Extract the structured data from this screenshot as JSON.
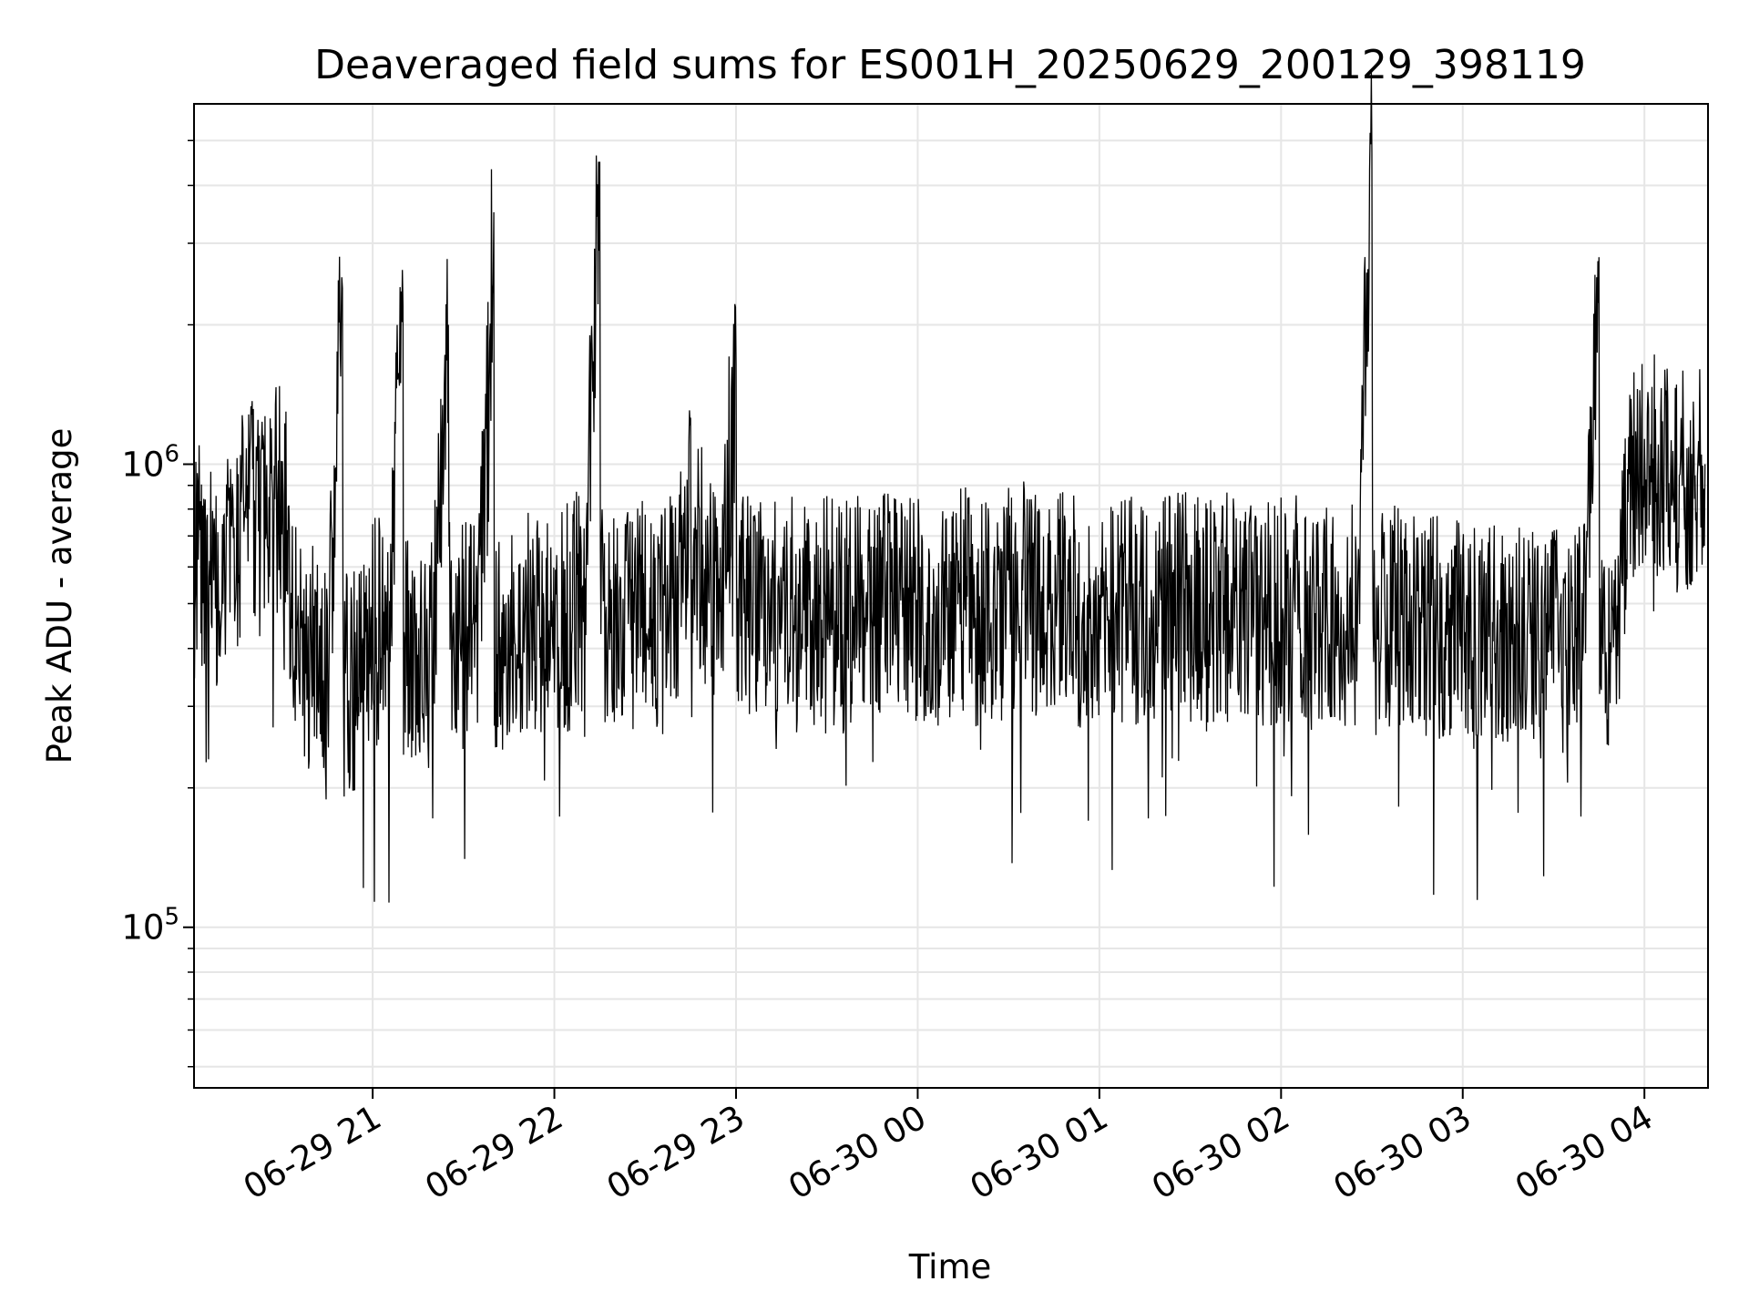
{
  "chart_data": {
    "type": "line",
    "title": "Deaveraged field sums for ES001H_20250629_200129_398119",
    "xlabel": "Time",
    "ylabel": "Peak ADU - average",
    "yscale": "log",
    "ylim": [
      45000,
      6000000
    ],
    "xlim": [
      "2025-06-29 20:01",
      "2025-06-30 04:21"
    ],
    "grid": true,
    "line_color": "#000000",
    "x_ticks": [
      {
        "t": "2025-06-29 21:00",
        "label": "06-29 21"
      },
      {
        "t": "2025-06-29 22:00",
        "label": "06-29 22"
      },
      {
        "t": "2025-06-29 23:00",
        "label": "06-29 23"
      },
      {
        "t": "2025-06-30 00:00",
        "label": "06-30 00"
      },
      {
        "t": "2025-06-30 01:00",
        "label": "06-30 01"
      },
      {
        "t": "2025-06-30 02:00",
        "label": "06-30 02"
      },
      {
        "t": "2025-06-30 03:00",
        "label": "06-30 03"
      },
      {
        "t": "2025-06-30 04:00",
        "label": "06-30 04"
      }
    ],
    "y_ticks": [
      {
        "value": 100000,
        "base": "10",
        "exp": "5"
      },
      {
        "value": 1000000,
        "base": "10",
        "exp": "6"
      }
    ],
    "series": [
      {
        "x": [
          "2025-06-29 20:01",
          "2025-06-29 20:05",
          "2025-06-29 20:10",
          "2025-06-29 20:15",
          "2025-06-29 20:20",
          "2025-06-29 20:25",
          "2025-06-29 20:30",
          "2025-06-29 20:35",
          "2025-06-29 20:40",
          "2025-06-29 20:45",
          "2025-06-29 20:50",
          "2025-06-29 20:55",
          "2025-06-29 21:00",
          "2025-06-29 21:05",
          "2025-06-29 21:10",
          "2025-06-29 21:15",
          "2025-06-29 21:20",
          "2025-06-29 21:25",
          "2025-06-29 21:30",
          "2025-06-29 21:35",
          "2025-06-29 21:40",
          "2025-06-29 21:45",
          "2025-06-29 21:50",
          "2025-06-29 21:55",
          "2025-06-29 22:00",
          "2025-06-29 22:05",
          "2025-06-29 22:10",
          "2025-06-29 22:15",
          "2025-06-29 22:20",
          "2025-06-29 22:25",
          "2025-06-29 22:30",
          "2025-06-29 22:35",
          "2025-06-29 22:40",
          "2025-06-29 22:45",
          "2025-06-29 22:50",
          "2025-06-29 22:55",
          "2025-06-29 23:00",
          "2025-06-29 23:05",
          "2025-06-29 23:10",
          "2025-06-29 23:15",
          "2025-06-29 23:20",
          "2025-06-29 23:25",
          "2025-06-29 23:30",
          "2025-06-29 23:35",
          "2025-06-29 23:40",
          "2025-06-29 23:45",
          "2025-06-29 23:50",
          "2025-06-29 23:55",
          "2025-06-30 00:00",
          "2025-06-30 00:05",
          "2025-06-30 00:10",
          "2025-06-30 00:15",
          "2025-06-30 00:20",
          "2025-06-30 00:25",
          "2025-06-30 00:30",
          "2025-06-30 00:35",
          "2025-06-30 00:40",
          "2025-06-30 00:45",
          "2025-06-30 00:50",
          "2025-06-30 00:55",
          "2025-06-30 01:00",
          "2025-06-30 01:05",
          "2025-06-30 01:10",
          "2025-06-30 01:15",
          "2025-06-30 01:20",
          "2025-06-30 01:25",
          "2025-06-30 01:30",
          "2025-06-30 01:35",
          "2025-06-30 01:40",
          "2025-06-30 01:45",
          "2025-06-30 01:50",
          "2025-06-30 01:55",
          "2025-06-30 02:00",
          "2025-06-30 02:05",
          "2025-06-30 02:10",
          "2025-06-30 02:15",
          "2025-06-30 02:20",
          "2025-06-30 02:25",
          "2025-06-30 02:30",
          "2025-06-30 02:35",
          "2025-06-30 02:40",
          "2025-06-30 02:45",
          "2025-06-30 02:50",
          "2025-06-30 02:55",
          "2025-06-30 03:00",
          "2025-06-30 03:05",
          "2025-06-30 03:10",
          "2025-06-30 03:15",
          "2025-06-30 03:20",
          "2025-06-30 03:25",
          "2025-06-30 03:30",
          "2025-06-30 03:35",
          "2025-06-30 03:40",
          "2025-06-30 03:45",
          "2025-06-30 03:50",
          "2025-06-30 03:55",
          "2025-06-30 04:00",
          "2025-06-30 04:05",
          "2025-06-30 04:10",
          "2025-06-30 04:15",
          "2025-06-30 04:20"
        ],
        "values": [
          600000,
          660000,
          560000,
          700000,
          800000,
          720000,
          900000,
          420000,
          380000,
          330000,
          2400000,
          370000,
          440000,
          430000,
          2200000,
          410000,
          440000,
          2000000,
          430000,
          410000,
          3500000,
          420000,
          440000,
          470000,
          450000,
          470000,
          520000,
          4500000,
          470000,
          450000,
          480000,
          470000,
          500000,
          800000,
          560000,
          520000,
          1650000,
          490000,
          470000,
          500000,
          490000,
          480000,
          500000,
          460000,
          490000,
          480000,
          500000,
          470000,
          500000,
          480000,
          490000,
          510000,
          470000,
          480000,
          500000,
          520000,
          490000,
          480000,
          500000,
          470000,
          490000,
          480000,
          500000,
          470000,
          480000,
          500000,
          490000,
          470000,
          480000,
          500000,
          490000,
          470000,
          480000,
          500000,
          470000,
          490000,
          480000,
          460000,
          4700000,
          470000,
          460000,
          450000,
          460000,
          440000,
          430000,
          420000,
          440000,
          410000,
          430000,
          400000,
          420000,
          410000,
          430000,
          2800000,
          420000,
          900000,
          950000,
          1000000,
          900000,
          960000,
          1000000
        ]
      }
    ]
  }
}
